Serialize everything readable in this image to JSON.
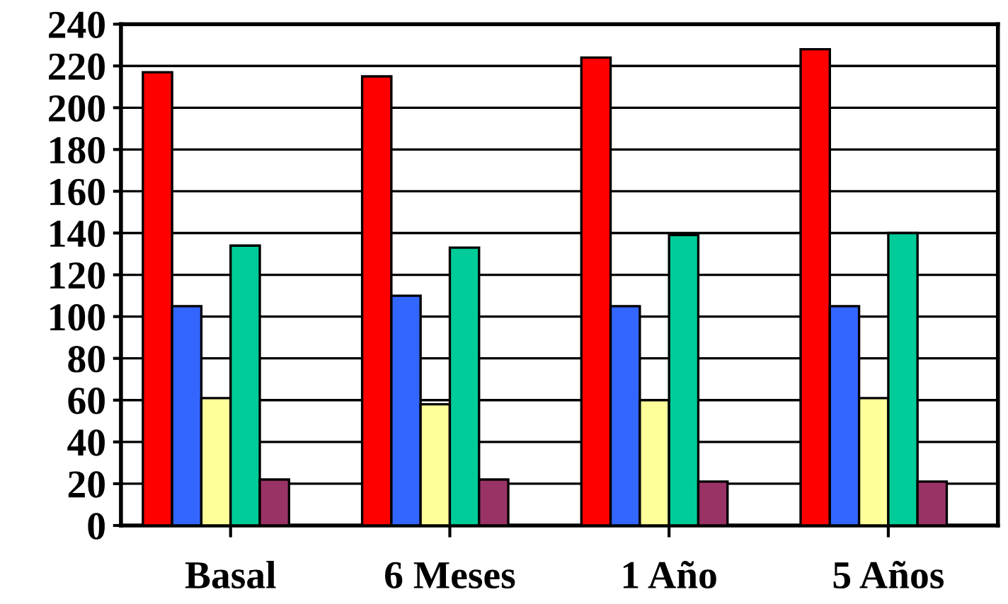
{
  "chart_data": {
    "type": "bar",
    "categories": [
      "Basal",
      "6 Meses",
      "1 Año",
      "5 Años"
    ],
    "series": [
      {
        "color": "#ff0000",
        "values": [
          217,
          215,
          224,
          228
        ]
      },
      {
        "color": "#3366ff",
        "values": [
          105,
          110,
          105,
          105
        ]
      },
      {
        "color": "#ffff99",
        "values": [
          61,
          58,
          60,
          61
        ]
      },
      {
        "color": "#00cc99",
        "values": [
          134,
          133,
          139,
          140
        ]
      },
      {
        "color": "#993366",
        "values": [
          22,
          22,
          21,
          21
        ]
      },
      {
        "color": "#000000",
        "values": [
          0,
          0,
          0,
          0
        ]
      }
    ],
    "ylim": [
      0,
      240
    ],
    "yticks": [
      0,
      20,
      40,
      60,
      80,
      100,
      120,
      140,
      160,
      180,
      200,
      220,
      240
    ],
    "grid": "y",
    "legend": false
  }
}
